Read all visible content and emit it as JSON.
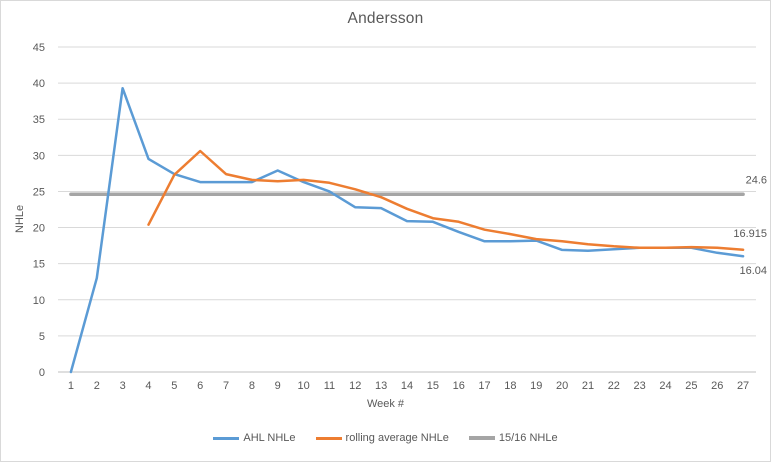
{
  "theme": {
    "background": "#FFFFFF",
    "border": "#D9D9D9",
    "grid": "#D9D9D9",
    "axis_line": "#BFBFBF",
    "text": "#595959"
  },
  "chart_data": {
    "type": "line",
    "title": "Andersson",
    "xlabel": "Week #",
    "ylabel": "NHLe",
    "x": [
      1,
      2,
      3,
      4,
      5,
      6,
      7,
      8,
      9,
      10,
      11,
      12,
      13,
      14,
      15,
      16,
      17,
      18,
      19,
      20,
      21,
      22,
      23,
      24,
      25,
      26,
      27
    ],
    "ylim": [
      0,
      45
    ],
    "ytick_step": 5,
    "grid": true,
    "legend_position": "bottom",
    "series": [
      {
        "name": "AHL NHLe",
        "color": "#5B9BD5",
        "width": 2.5,
        "values": [
          0,
          13,
          39.3,
          29.5,
          27.4,
          26.3,
          26.3,
          26.3,
          27.9,
          26.3,
          25,
          22.8,
          22.7,
          20.9,
          20.8,
          19.4,
          18.1,
          18.1,
          18.2,
          16.9,
          16.8,
          17,
          17.2,
          17.2,
          17.2,
          16.5,
          16.04
        ]
      },
      {
        "name": "rolling average NHLe",
        "color": "#ED7D31",
        "width": 2.5,
        "values": [
          null,
          null,
          null,
          20.4,
          27.3,
          30.6,
          27.4,
          26.6,
          26.4,
          26.6,
          26.2,
          25.3,
          24.2,
          22.6,
          21.3,
          20.8,
          19.7,
          19.1,
          18.4,
          18.1,
          17.7,
          17.4,
          17.2,
          17.2,
          17.3,
          17.2,
          16.915
        ]
      },
      {
        "name": "15/16 NHLe",
        "color": "#A5A5A5",
        "width": 3.5,
        "constant": 24.6
      }
    ],
    "end_labels": [
      {
        "text": "24.6",
        "value": 24.6,
        "dy": -11
      },
      {
        "text": "16.915",
        "value": 16.915,
        "dy": -13
      },
      {
        "text": "16.04",
        "value": 16.04,
        "dy": 18
      }
    ]
  }
}
